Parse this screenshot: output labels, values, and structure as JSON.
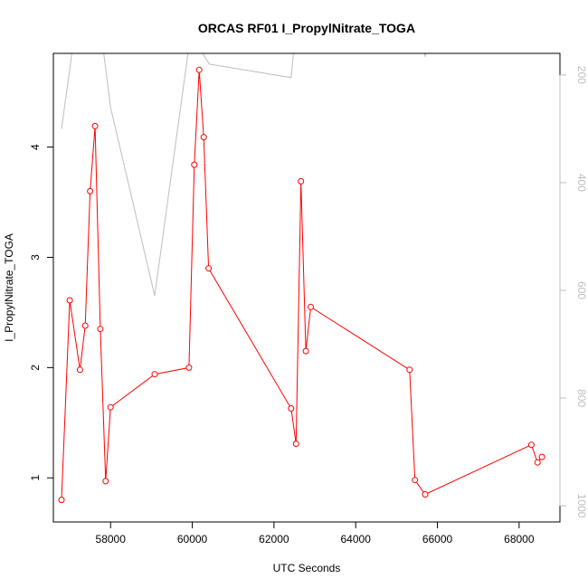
{
  "chart_data": {
    "type": "line",
    "title": "ORCAS RF01 I_PropylNitrate_TOGA",
    "xlabel": "UTC Seconds",
    "ylabel": "I_PropylNitrate_TOGA",
    "xlim": [
      56600,
      69000
    ],
    "ylim": [
      0.6,
      4.85
    ],
    "y2lim": [
      1030,
      160
    ],
    "x_ticks": [
      58000,
      60000,
      62000,
      64000,
      66000,
      68000
    ],
    "y_ticks": [
      1,
      2,
      3,
      4
    ],
    "y2_ticks": [
      200,
      400,
      600,
      800,
      1000
    ],
    "grid": false,
    "legend": "none",
    "colors": {
      "primary": "#ff0000",
      "secondary": "#bebebe",
      "axis": "#000000"
    },
    "series": [
      {
        "axis": "left",
        "style": "line-points",
        "points": [
          [
            56800,
            0.8
          ],
          [
            57000,
            2.61
          ],
          [
            57250,
            1.98
          ],
          [
            57380,
            2.38
          ],
          [
            57500,
            3.6
          ],
          [
            57620,
            4.19
          ],
          [
            57750,
            2.35
          ],
          [
            57880,
            0.97
          ],
          [
            58000,
            1.64
          ],
          [
            59080,
            1.94
          ],
          [
            59920,
            2.0
          ],
          [
            60050,
            3.84
          ],
          [
            60170,
            4.7
          ],
          [
            60280,
            4.09
          ],
          [
            60400,
            2.9
          ],
          [
            62420,
            1.63
          ],
          [
            62540,
            1.31
          ],
          [
            62660,
            3.69
          ],
          [
            62780,
            2.15
          ],
          [
            62900,
            2.55
          ],
          [
            65320,
            1.98
          ],
          [
            65450,
            0.98
          ],
          [
            65700,
            0.85
          ],
          [
            68300,
            1.3
          ],
          [
            68450,
            1.14
          ],
          [
            68560,
            1.19
          ]
        ]
      },
      {
        "axis": "right",
        "style": "line",
        "points": [
          [
            56800,
            300
          ],
          [
            57000,
            190
          ],
          [
            57100,
            130
          ],
          [
            57800,
            140
          ],
          [
            58000,
            260
          ],
          [
            59080,
            610
          ],
          [
            59950,
            130
          ],
          [
            60000,
            130
          ],
          [
            60420,
            180
          ],
          [
            62420,
            205
          ],
          [
            62500,
            140
          ],
          [
            65600,
            140
          ],
          [
            65700,
            165
          ],
          [
            65800,
            140
          ]
        ]
      }
    ]
  }
}
